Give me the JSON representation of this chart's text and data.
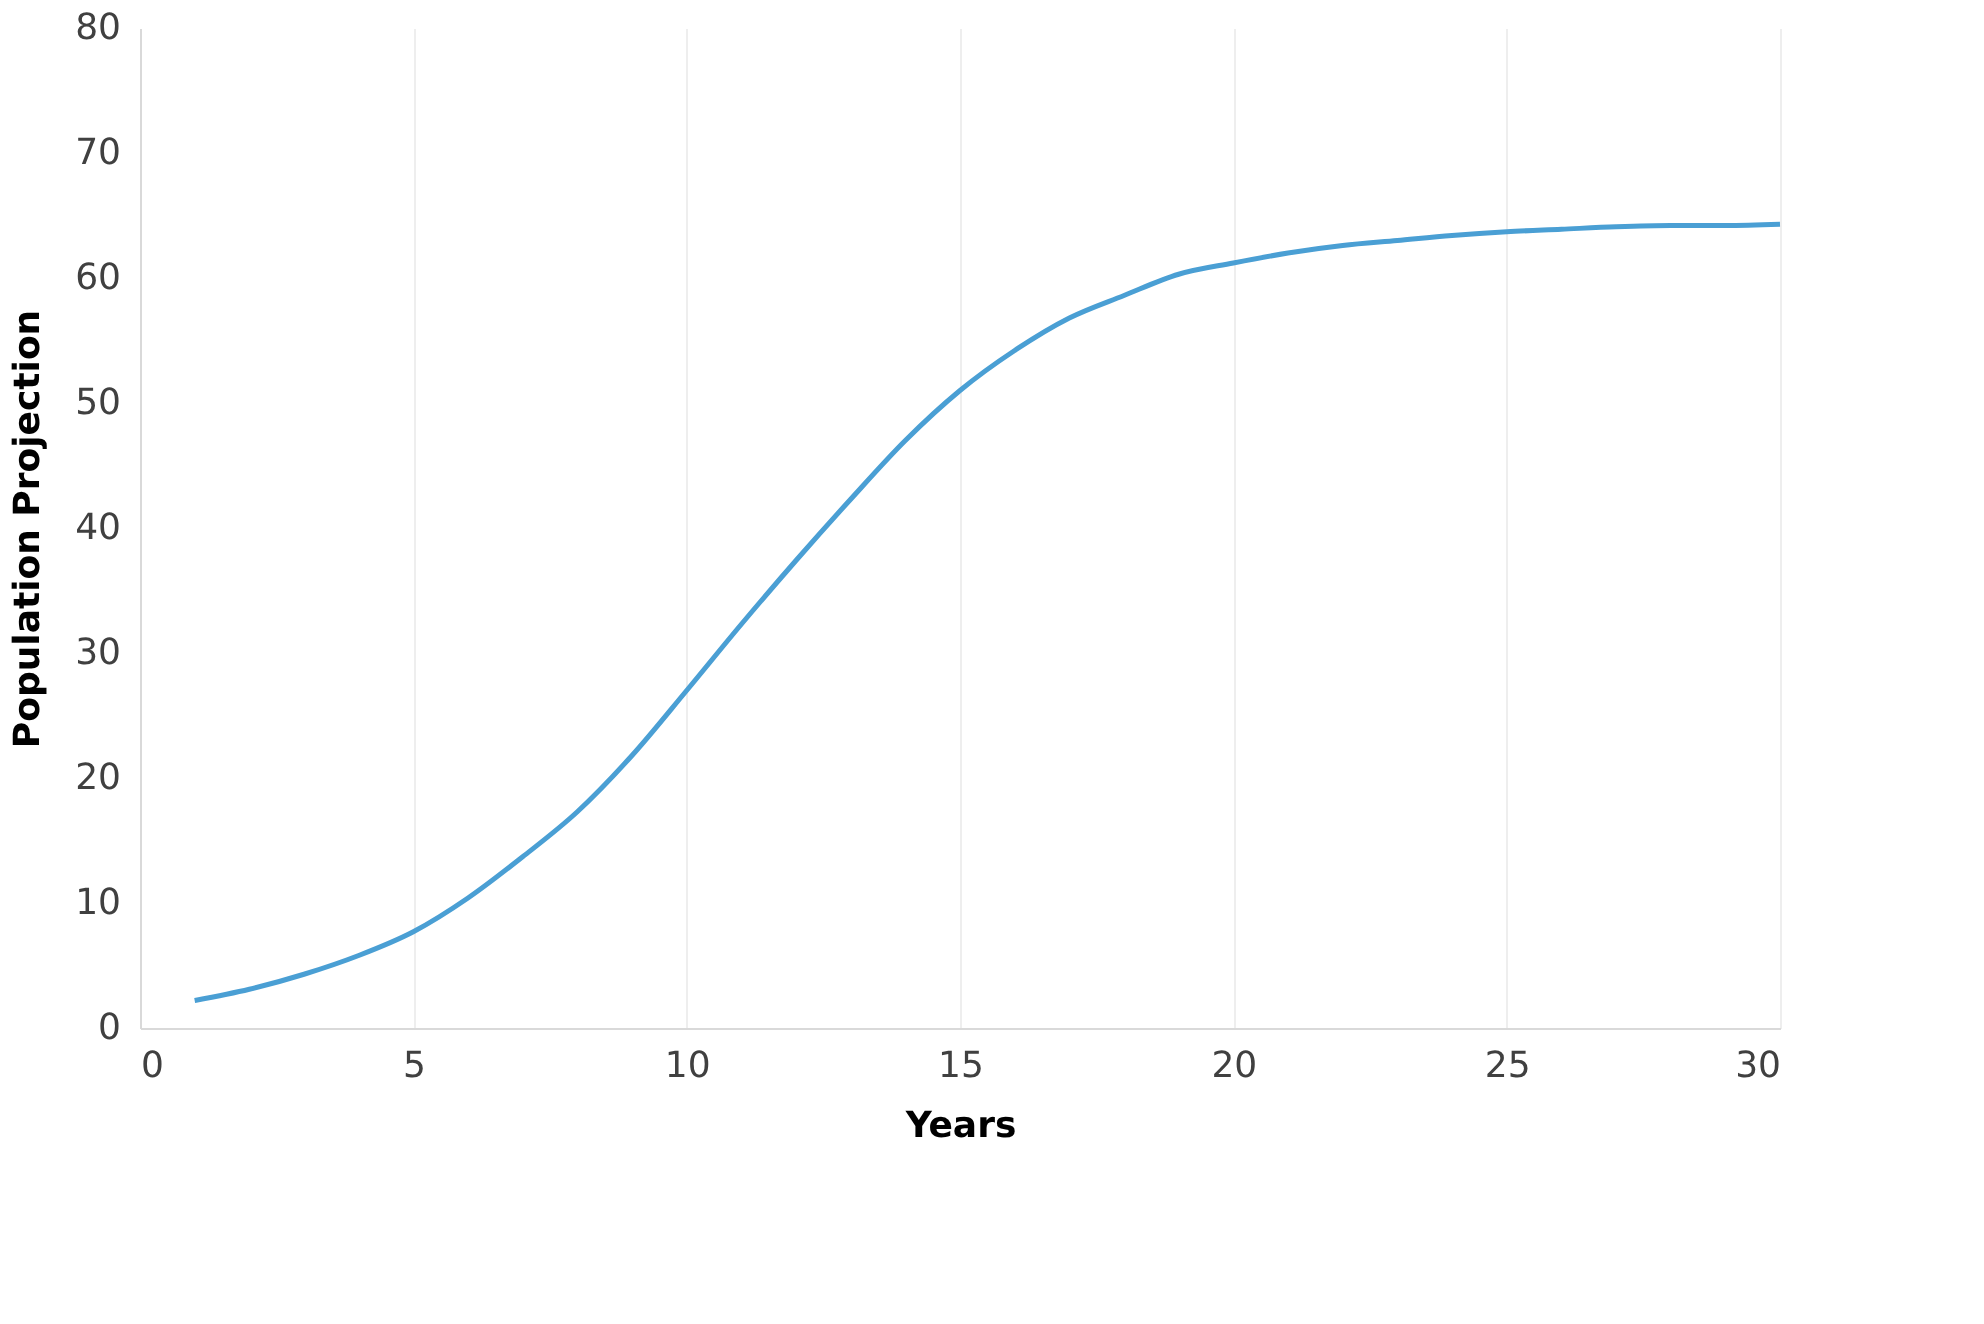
{
  "chart_data": {
    "type": "line",
    "xlabel": "Years",
    "ylabel": "Population Projection",
    "x": [
      1,
      2,
      3,
      4,
      5,
      6,
      7,
      8,
      9,
      10,
      11,
      12,
      13,
      14,
      15,
      16,
      17,
      18,
      19,
      20,
      21,
      22,
      23,
      24,
      25,
      26,
      27,
      28,
      29,
      30
    ],
    "series": [
      {
        "color": "#4a9fd4",
        "values": [
          2.2,
          3.1,
          4.3,
          5.8,
          7.7,
          10.4,
          13.7,
          17.3,
          21.8,
          27.0,
          32.3,
          37.4,
          42.3,
          47.0,
          51.0,
          54.2,
          56.8,
          58.6,
          60.3,
          61.2,
          62.0,
          62.6,
          63.0,
          63.4,
          63.7,
          63.9,
          64.1,
          64.2,
          64.2,
          64.3
        ]
      }
    ],
    "xlim": [
      0,
      30
    ],
    "xticks": [
      0,
      5,
      10,
      15,
      20,
      25,
      30
    ],
    "ylim": [
      0,
      80
    ],
    "yticks": [
      0,
      10,
      20,
      30,
      40,
      50,
      60,
      70,
      80
    ],
    "grid": "x",
    "legend": false,
    "marker": "none",
    "line_style": "solid"
  }
}
